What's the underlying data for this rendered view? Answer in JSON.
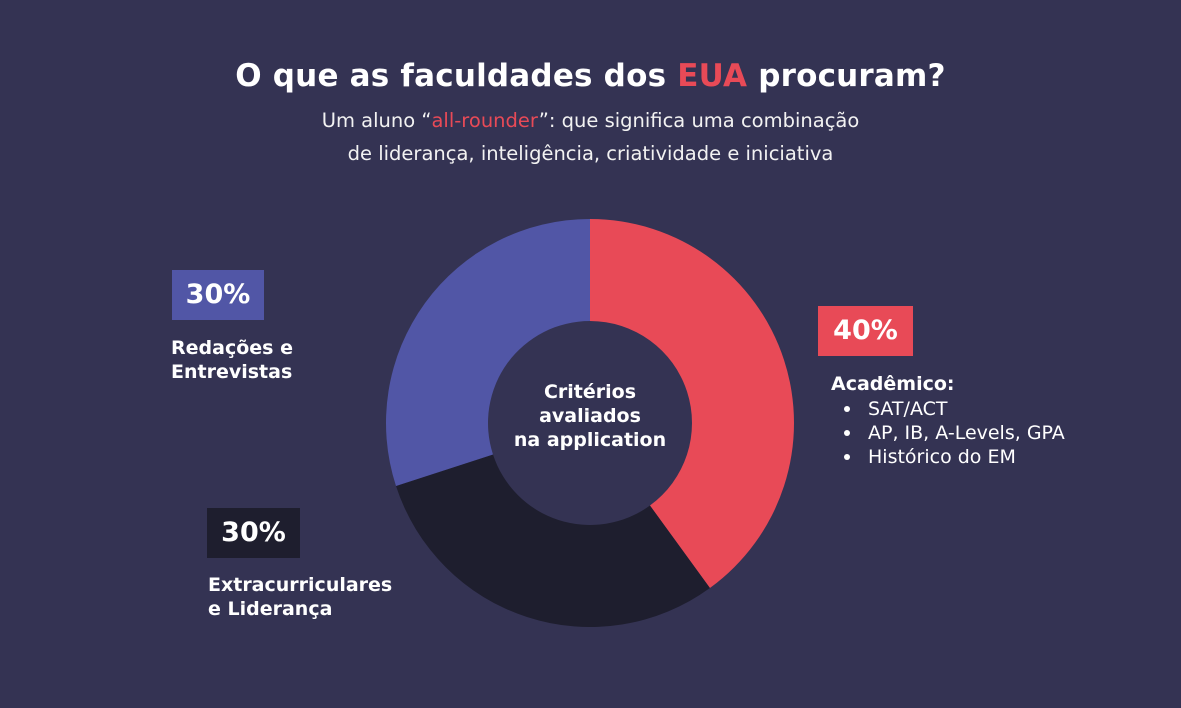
{
  "header": {
    "title_before": "O que as faculdades dos ",
    "title_accent": "EUA",
    "title_after": " procuram?",
    "subtitle_before": "Um aluno “",
    "subtitle_accent": "all-rounder",
    "subtitle_after": "”: que significa uma combinação",
    "subtitle_line2": "de liderança, inteligência, criatividade e iniciativa"
  },
  "center_label": [
    "Critérios",
    "avaliados",
    "na application"
  ],
  "colors": {
    "background": "#343353",
    "accent": "#e84a57",
    "blue": "#5156a6",
    "dark": "#1e1e2e"
  },
  "chart_data": {
    "type": "pie",
    "style": "donut",
    "categories": [
      "Acadêmico",
      "Extracurriculares e Liderança",
      "Redações e Entrevistas"
    ],
    "values": [
      40,
      30,
      30
    ],
    "colors": [
      "#e84a57",
      "#1e1e2e",
      "#5156a6"
    ],
    "labels": [
      "40%",
      "30%",
      "30%"
    ],
    "annotations": {
      "academico": {
        "pct": "40%",
        "title": "Acadêmico:",
        "items": [
          "SAT/ACT",
          "AP, IB, A-Levels, GPA",
          "Histórico do EM"
        ]
      },
      "extracurriculares": {
        "pct": "30%",
        "lines": [
          "Extracurriculares",
          "e Liderança"
        ]
      },
      "redacoes": {
        "pct": "30%",
        "lines": [
          "Redações e",
          "Entrevistas"
        ]
      }
    }
  }
}
